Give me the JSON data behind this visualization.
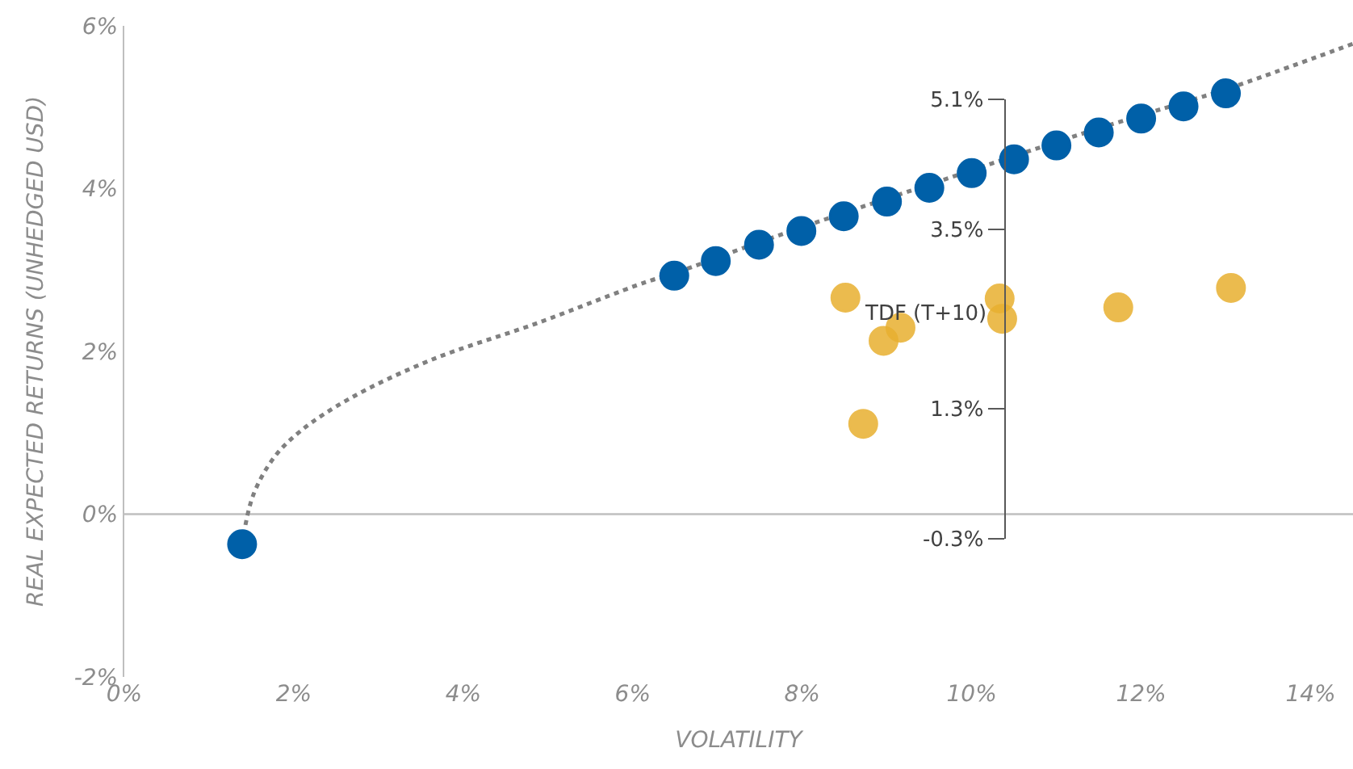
{
  "chart_data": {
    "type": "scatter",
    "xlabel": "VOLATILITY",
    "ylabel": "REAL EXPECTED RETURNS (UNHEDGED USD)",
    "xlim": [
      0,
      14.5
    ],
    "ylim": [
      -2,
      6
    ],
    "xticks": [
      {
        "value": 0,
        "label": "0%"
      },
      {
        "value": 2,
        "label": "2%"
      },
      {
        "value": 4,
        "label": "4%"
      },
      {
        "value": 6,
        "label": "6%"
      },
      {
        "value": 8,
        "label": "8%"
      },
      {
        "value": 10,
        "label": "10%"
      },
      {
        "value": 12,
        "label": "12%"
      },
      {
        "value": 14,
        "label": "14%"
      }
    ],
    "yticks": [
      {
        "value": -2,
        "label": "-2%"
      },
      {
        "value": 0,
        "label": "0%"
      },
      {
        "value": 2,
        "label": "2%"
      },
      {
        "value": 4,
        "label": "4%"
      },
      {
        "value": 6,
        "label": "6%"
      }
    ],
    "y2lim": [
      -0.3,
      5.1
    ],
    "y2ticks": [
      {
        "value": -0.3,
        "label": "-0.3%"
      },
      {
        "value": 1.3,
        "label": "1.3%"
      },
      {
        "value": 3.5,
        "label": "3.5%"
      },
      {
        "value": 5.1,
        "label": "5.1%"
      }
    ],
    "annotations": [
      {
        "text": "TDF (T+10)",
        "x": 10.33,
        "y": 2.45
      }
    ],
    "ref_lines": [
      {
        "axis": "y",
        "value": 0,
        "color": "#bfbfbf"
      }
    ],
    "grid": false,
    "marker": "circle",
    "series": [
      {
        "type": "line",
        "color": "#808080",
        "line_style": "dotted",
        "marker": "none",
        "x": [
          1.39,
          1.52,
          1.77,
          2.09,
          2.66,
          3.61,
          4.88,
          6.15,
          6.49,
          7.49,
          8.49,
          9.5,
          10.5,
          11.5,
          12.5,
          13.0,
          14.5
        ],
        "values": [
          -0.37,
          0.23,
          0.7,
          1.03,
          1.42,
          1.89,
          2.35,
          2.85,
          2.96,
          3.34,
          3.7,
          4.05,
          4.4,
          4.74,
          5.06,
          5.22,
          5.78
        ]
      },
      {
        "color": "#0060a8",
        "x": [
          1.39,
          6.49,
          6.98,
          7.49,
          7.99,
          8.49,
          9.0,
          9.5,
          10.0,
          10.5,
          11.0,
          11.5,
          12.0,
          12.5,
          13.0
        ],
        "values": [
          -0.37,
          2.93,
          3.11,
          3.31,
          3.48,
          3.66,
          3.84,
          4.01,
          4.19,
          4.36,
          4.53,
          4.69,
          4.86,
          5.01,
          5.17
        ]
      },
      {
        "color": "#e8b030",
        "x": [
          8.51,
          8.72,
          8.96,
          9.16,
          10.33,
          10.36,
          11.73,
          13.06
        ],
        "values": [
          2.66,
          1.11,
          2.13,
          2.29,
          2.65,
          2.4,
          2.54,
          2.78
        ]
      }
    ]
  }
}
